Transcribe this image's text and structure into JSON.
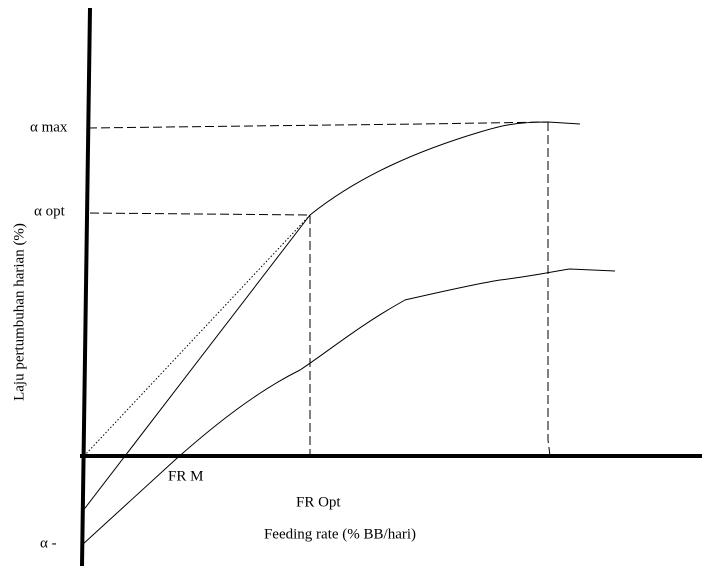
{
  "y_axis_label": "Laju pertumbuhan harian (%)",
  "x_axis_label": "Feeding rate (% BB/hari)",
  "labels": {
    "alpha_max": "α max",
    "alpha_opt": "α opt",
    "alpha_min": "α -",
    "fr_m": "FR M",
    "fr_opt": "FR Opt"
  }
}
